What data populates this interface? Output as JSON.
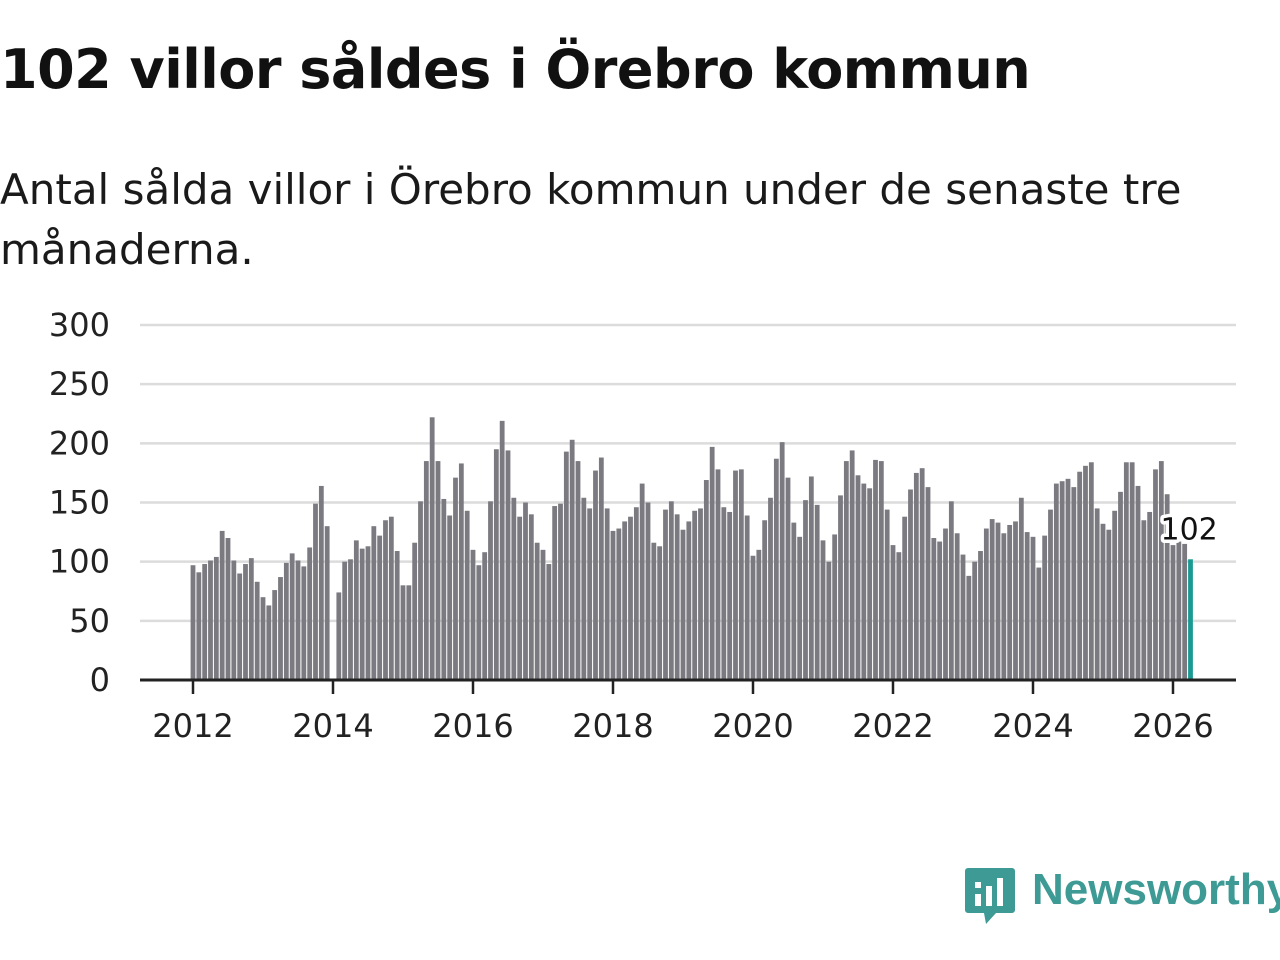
{
  "title": "102 villor såldes i Örebro kommun",
  "subtitle": "Antal sålda villor i Örebro kommun under de senaste tre månaderna.",
  "brand": {
    "name": "Newsworthy",
    "icon": "newsworthy-logo-icon",
    "color": "#3d9a95"
  },
  "chart_data": {
    "type": "bar",
    "title": "102 villor såldes i Örebro kommun",
    "xlabel": "",
    "ylabel": "",
    "ylim": [
      0,
      300
    ],
    "yticks": [
      0,
      50,
      100,
      150,
      200,
      250,
      300
    ],
    "xticks": [
      "2012",
      "2014",
      "2016",
      "2018",
      "2020",
      "2022",
      "2024",
      "2026"
    ],
    "grid": true,
    "bar_color": "#7a7a80",
    "highlight_color": "#1a9a92",
    "start": {
      "year": 2012,
      "month": 1
    },
    "last_value_label": "102",
    "values": [
      97,
      91,
      98,
      101,
      104,
      126,
      120,
      101,
      90,
      98,
      103,
      83,
      70,
      63,
      76,
      87,
      99,
      107,
      101,
      96,
      112,
      149,
      164,
      130,
      0,
      74,
      100,
      102,
      118,
      111,
      113,
      130,
      122,
      135,
      138,
      109,
      80,
      80,
      116,
      151,
      185,
      222,
      185,
      153,
      139,
      171,
      183,
      143,
      110,
      97,
      108,
      151,
      195,
      219,
      194,
      154,
      138,
      150,
      140,
      116,
      110,
      98,
      147,
      149,
      193,
      203,
      185,
      154,
      145,
      177,
      188,
      145,
      126,
      128,
      134,
      138,
      146,
      166,
      150,
      116,
      113,
      144,
      151,
      140,
      127,
      134,
      143,
      145,
      169,
      197,
      178,
      146,
      142,
      177,
      178,
      139,
      105,
      110,
      135,
      154,
      187,
      201,
      171,
      133,
      121,
      152,
      172,
      148,
      118,
      100,
      123,
      156,
      185,
      194,
      173,
      166,
      162,
      186,
      185,
      144,
      114,
      108,
      138,
      161,
      175,
      179,
      163,
      120,
      117,
      128,
      151,
      124,
      106,
      88,
      100,
      109,
      128,
      136,
      133,
      124,
      131,
      134,
      154,
      125,
      121,
      95,
      122,
      144,
      166,
      168,
      170,
      163,
      176,
      181,
      184,
      145,
      132,
      127,
      143,
      159,
      184,
      184,
      164,
      135,
      142,
      178,
      185,
      157,
      114,
      117,
      115,
      102
    ]
  }
}
